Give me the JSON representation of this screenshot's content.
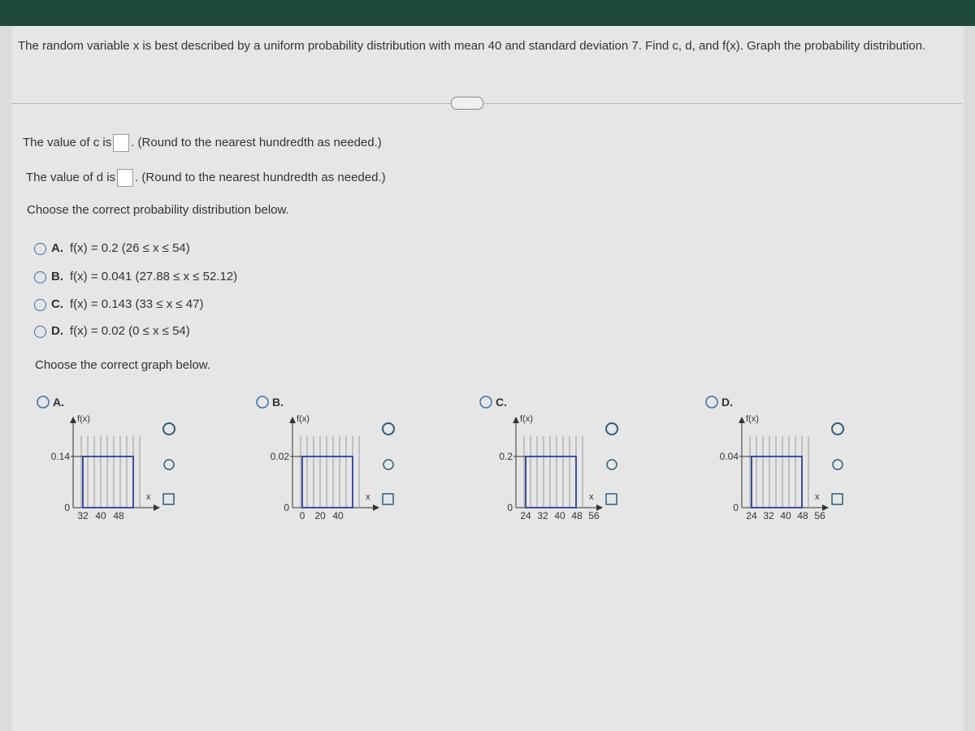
{
  "question": "The random variable x is best described by a uniform probability distribution with mean 40 and standard deviation 7. Find c, d, and f(x). Graph the probability distribution.",
  "inputs": [
    {
      "label": "The value of c is",
      "note": ". (Round to the nearest hundredth as needed.)"
    },
    {
      "label": "The value of d is",
      "note": ". (Round to the nearest hundredth as needed.)"
    }
  ],
  "prompt_distribution": "Choose the correct probability distribution below.",
  "options": [
    {
      "letter": "A.",
      "text": "f(x) = 0.2  (26 ≤ x ≤ 54)"
    },
    {
      "letter": "B.",
      "text": "f(x) = 0.041  (27.88 ≤ x ≤ 52.12)"
    },
    {
      "letter": "C.",
      "text": "f(x) = 0.143  (33 ≤ x ≤ 47)"
    },
    {
      "letter": "D.",
      "text": "f(x) = 0.02  (0 ≤ x ≤ 54)"
    }
  ],
  "prompt_graph": "Choose the correct graph below.",
  "graphs": [
    {
      "letter": "A.",
      "y_label": "f(x)",
      "x_label": "x",
      "y_ticks": [
        "0.14",
        "0"
      ],
      "x_ticks": [
        "32",
        "40",
        "48"
      ]
    },
    {
      "letter": "B.",
      "y_label": "f(x)",
      "x_label": "x",
      "y_ticks": [
        "0.02",
        "0"
      ],
      "x_ticks": [
        "0",
        "20",
        "40"
      ]
    },
    {
      "letter": "C.",
      "y_label": "f(x)",
      "x_label": "x",
      "y_ticks": [
        "0.2",
        "0"
      ],
      "x_ticks": [
        "24",
        "32",
        "40",
        "48",
        "56"
      ]
    },
    {
      "letter": "D.",
      "y_label": "f(x)",
      "x_label": "x",
      "y_ticks": [
        "0.04",
        "0"
      ],
      "x_ticks": [
        "24",
        "32",
        "40",
        "48",
        "56"
      ]
    }
  ]
}
